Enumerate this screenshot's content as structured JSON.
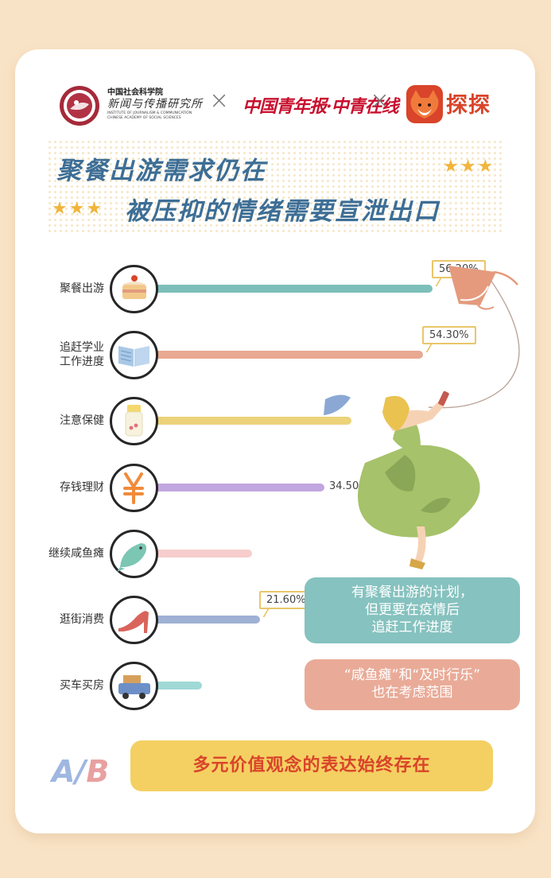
{
  "header": {
    "cass_cn": "中国社会科学院",
    "cass_name": "新闻与传播研究所",
    "cass_en": [
      "INSTITUTE OF JOURNALISM & COMMUNICATION",
      "CHINESE ACADEMY OF SOCIAL SCIENCES"
    ],
    "times_symbol": "×",
    "cyd_name": "中国青年报·中青在线",
    "tantan_name": "探探"
  },
  "title": {
    "line1": "聚餐出游需求仍在",
    "line2": "被压抑的情绪需要宣泄出口",
    "stars": "★★★"
  },
  "chart_data": {
    "type": "bar",
    "orientation": "horizontal",
    "categories": [
      "聚餐出游",
      "追赶学业工作进度",
      "注意保健",
      "存钱理财",
      "继续咸鱼瘫",
      "逛街消费",
      "买车买房"
    ],
    "category_lines": [
      [
        "聚餐出游"
      ],
      [
        "追赶学业",
        "工作进度"
      ],
      [
        "注意保健"
      ],
      [
        "存钱理财"
      ],
      [
        "继续咸鱼瘫"
      ],
      [
        "逛街消费"
      ],
      [
        "买车买房"
      ]
    ],
    "values": [
      56.2,
      54.3,
      40.0,
      34.5,
      20.0,
      21.6,
      10.0
    ],
    "value_labels": [
      "56.20%",
      "54.30%",
      "",
      "34.50%",
      "",
      "21.60%",
      ""
    ],
    "bar_colors": [
      "#7cbfba",
      "#e9a892",
      "#ecd279",
      "#c2a6df",
      "#f7cdcd",
      "#9fb1d4",
      "#9fd9d6"
    ],
    "icons": [
      "cake-icon",
      "book-icon",
      "medicine-bottle-icon",
      "yuan-icon",
      "fish-icon",
      "high-heel-icon",
      "truck-icon"
    ]
  },
  "notes": {
    "note1": [
      "有聚餐出游的计划，",
      "但更要在疫情后",
      "追赶工作进度"
    ],
    "note2": [
      "“咸鱼瘫”和“及时行乐”",
      "也在考虑范围"
    ],
    "ab_logo": [
      "A",
      "/",
      "B"
    ],
    "conclusion": "多元价值观念的表达始终存在"
  },
  "colors": {
    "background": "#f9e3c6",
    "title": "#3d6e95",
    "note1_bg": "#86c2bf",
    "note2_bg": "#e9ab98",
    "conclusion_bg": "#f4d062",
    "conclusion_text": "#d9442a",
    "ab_a": "#9fb7e1",
    "ab_b": "#e8a0a0"
  }
}
